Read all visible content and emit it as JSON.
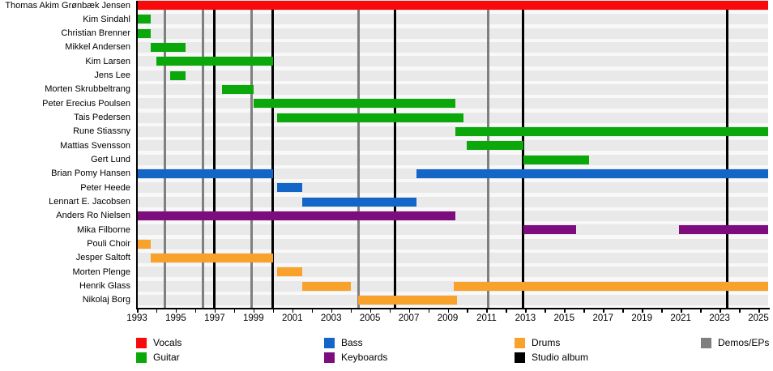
{
  "chart_data": {
    "type": "timeline",
    "description": "Band member timeline (Gantt-style) with membership bars per instrument and vertical release lines",
    "x_axis": {
      "min_year": 1993,
      "max_year": 2025.5,
      "label_years": [
        1993,
        1995,
        1997,
        1999,
        2001,
        2003,
        2005,
        2007,
        2009,
        2011,
        2013,
        2015,
        2017,
        2019,
        2021,
        2023,
        2025
      ],
      "minor_tick_step": 1
    },
    "colors": {
      "vocals": "#f80a0a",
      "guitar": "#0aa80a",
      "bass": "#1365c8",
      "keyboards": "#7d0d7d",
      "drums": "#f8a22b",
      "studio_album": "#000000",
      "demos_eps": "#7f7f7f",
      "row_band": "#e9e9e9",
      "plot_background": "#f8f8f8"
    },
    "members": [
      {
        "name": "Thomas Akim Grønbæk Jensen",
        "instrument": "vocals",
        "stints": [
          [
            1993.0,
            2025.5
          ]
        ]
      },
      {
        "name": "Kim Sindahl",
        "instrument": "guitar",
        "stints": [
          [
            1993.0,
            1993.7
          ]
        ]
      },
      {
        "name": "Christian Brenner",
        "instrument": "guitar",
        "stints": [
          [
            1993.0,
            1993.7
          ]
        ]
      },
      {
        "name": "Mikkel Andersen",
        "instrument": "guitar",
        "stints": [
          [
            1993.7,
            1995.5
          ]
        ]
      },
      {
        "name": "Kim Larsen",
        "instrument": "guitar",
        "stints": [
          [
            1994.0,
            2000.0
          ]
        ]
      },
      {
        "name": "Jens Lee",
        "instrument": "guitar",
        "stints": [
          [
            1994.7,
            1995.5
          ]
        ]
      },
      {
        "name": "Morten Skrubbeltrang",
        "instrument": "guitar",
        "stints": [
          [
            1997.4,
            1999.0
          ]
        ]
      },
      {
        "name": "Peter Erecius Poulsen",
        "instrument": "guitar",
        "stints": [
          [
            1999.0,
            2009.4
          ]
        ]
      },
      {
        "name": "Tais Pedersen",
        "instrument": "guitar",
        "stints": [
          [
            2000.2,
            2009.8
          ]
        ]
      },
      {
        "name": "Rune Stiassny",
        "instrument": "guitar",
        "stints": [
          [
            2009.4,
            2025.5
          ]
        ]
      },
      {
        "name": "Mattias Svensson",
        "instrument": "guitar",
        "stints": [
          [
            2010.0,
            2012.9
          ]
        ]
      },
      {
        "name": "Gert Lund",
        "instrument": "guitar",
        "stints": [
          [
            2012.9,
            2016.3
          ]
        ]
      },
      {
        "name": "Brian Pomy Hansen",
        "instrument": "bass",
        "stints": [
          [
            1993.0,
            2000.0
          ],
          [
            2007.4,
            2025.5
          ]
        ]
      },
      {
        "name": "Peter Heede",
        "instrument": "bass",
        "stints": [
          [
            2000.2,
            2001.5
          ]
        ]
      },
      {
        "name": "Lennart E. Jacobsen",
        "instrument": "bass",
        "stints": [
          [
            2001.5,
            2007.4
          ]
        ]
      },
      {
        "name": "Anders Ro Nielsen",
        "instrument": "keyboards",
        "stints": [
          [
            1993.0,
            2009.4
          ]
        ]
      },
      {
        "name": "Mika Filborne",
        "instrument": "keyboards",
        "stints": [
          [
            2012.9,
            2015.6
          ],
          [
            2020.9,
            2025.5
          ]
        ]
      },
      {
        "name": "Pouli Choir",
        "instrument": "drums",
        "stints": [
          [
            1993.0,
            1993.7
          ]
        ]
      },
      {
        "name": "Jesper Saltoft",
        "instrument": "drums",
        "stints": [
          [
            1993.7,
            2000.0
          ]
        ]
      },
      {
        "name": "Morten Plenge",
        "instrument": "drums",
        "stints": [
          [
            2000.2,
            2001.5
          ]
        ]
      },
      {
        "name": "Henrik Glass",
        "instrument": "drums",
        "stints": [
          [
            2001.5,
            2004.0
          ],
          [
            2009.3,
            2025.5
          ]
        ]
      },
      {
        "name": "Nikolaj Borg",
        "instrument": "drums",
        "stints": [
          [
            2004.4,
            2009.5
          ]
        ]
      }
    ],
    "event_lines": {
      "studio_album": [
        1997.0,
        2000.0,
        2006.3,
        2012.9,
        2023.4
      ],
      "demos_eps": [
        1994.45,
        1996.4,
        1998.9,
        2004.4,
        2011.1
      ]
    }
  },
  "legend": {
    "items": [
      {
        "label": "Vocals",
        "key": "vocals"
      },
      {
        "label": "Guitar",
        "key": "guitar"
      },
      {
        "label": "Bass",
        "key": "bass"
      },
      {
        "label": "Keyboards",
        "key": "keyboards"
      },
      {
        "label": "Drums",
        "key": "drums"
      },
      {
        "label": "Studio album",
        "key": "studio_album"
      },
      {
        "label": "Demos/EPs",
        "key": "demos_eps"
      }
    ]
  }
}
